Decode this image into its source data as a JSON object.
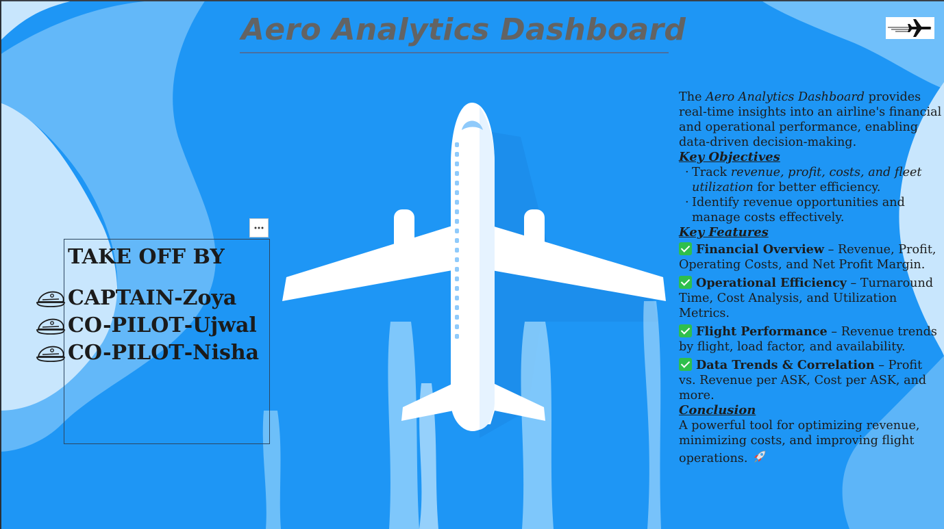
{
  "header": {
    "title": "Aero Analytics Dashboard"
  },
  "icons": {
    "logo": "airplane-icon",
    "more": "more-options-icon",
    "crew": "pilot-hat-icon",
    "check": "check-mark-icon",
    "rocket": "rocket-icon"
  },
  "colors": {
    "background": "#1e96f5",
    "light_shape": "#c8e6fd",
    "mid_shape": "#6fbffa",
    "title": "#636363"
  },
  "team": {
    "heading": "TAKE OFF BY",
    "members": [
      {
        "role": "CAPTAIN",
        "separator": "- ",
        "name": "Zoya"
      },
      {
        "role": "CO-PILOT",
        "separator": " - ",
        "name": "Ujwal"
      },
      {
        "role": "CO-PILOT",
        "separator": " - ",
        "name": "Nisha"
      }
    ]
  },
  "info": {
    "intro_before": "The ",
    "intro_em": "Aero Analytics Dashboard",
    "intro_after": " provides real-time insights into an airline's financial and operational performance, enabling data-driven decision-making.",
    "objectives_heading": "Key Objectives",
    "objective_1_before": "Track ",
    "objective_1_em": "revenue, profit, costs, and fleet utilization",
    "objective_1_after": " for better efficiency.",
    "objective_2": "Identify revenue opportunities and manage costs effectively.",
    "features_heading": "Key Features",
    "features": [
      {
        "title": "Financial Overview",
        "text": " – Revenue, Profit, Operating Costs, and Net Profit Margin."
      },
      {
        "title": "Operational Efficiency",
        "text": " – Turnaround Time, Cost Analysis, and Utilization Metrics."
      },
      {
        "title": "Flight Performance",
        "text": " – Revenue trends by flight, load factor, and availability."
      },
      {
        "title": "Data Trends & Correlation",
        "text": " – Profit vs. Revenue per ASK, Cost per ASK, and more."
      }
    ],
    "conclusion_heading": "Conclusion",
    "conclusion_text": "A powerful tool for optimizing revenue, minimizing costs, and improving flight operations."
  }
}
